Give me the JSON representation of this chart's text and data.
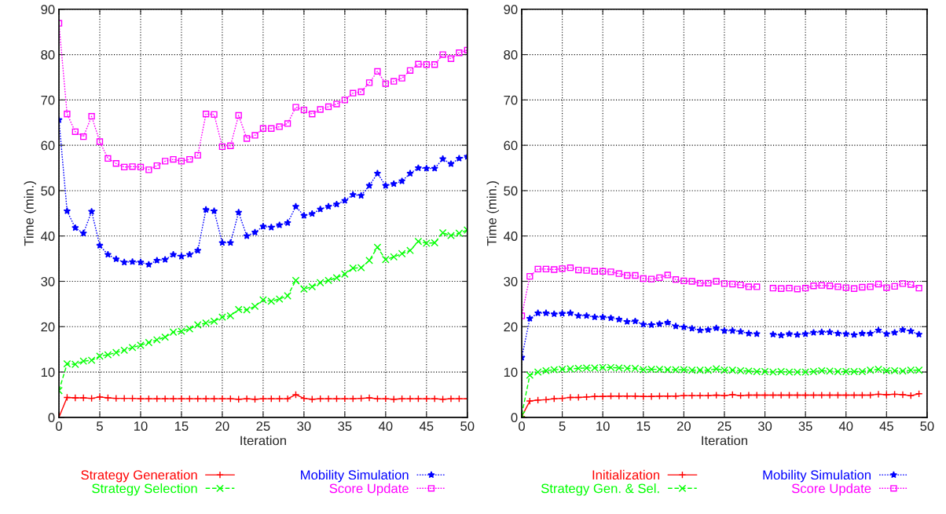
{
  "chart_data": [
    {
      "type": "line",
      "xlabel": "Iteration",
      "ylabel": "Time (min.)",
      "x": [
        0,
        1,
        2,
        3,
        4,
        5,
        6,
        7,
        8,
        9,
        10,
        11,
        12,
        13,
        14,
        15,
        16,
        17,
        18,
        19,
        20,
        21,
        22,
        23,
        24,
        25,
        26,
        27,
        28,
        29,
        30,
        31,
        32,
        33,
        34,
        35,
        36,
        37,
        38,
        39,
        40,
        41,
        42,
        43,
        44,
        45,
        46,
        47,
        48,
        49,
        50
      ],
      "xlim": [
        0,
        50
      ],
      "xticks": [
        0,
        5,
        10,
        15,
        20,
        25,
        30,
        35,
        40,
        45,
        50
      ],
      "ylim": [
        0,
        90
      ],
      "yticks": [
        0,
        10,
        20,
        30,
        40,
        50,
        60,
        70,
        80,
        90
      ],
      "grid": true,
      "legend": "bottom",
      "series": [
        {
          "name": "Strategy Generation",
          "color": "#ff0000",
          "marker": "plus",
          "line_style": "solid",
          "values": [
            0,
            4.4,
            4.3,
            4.3,
            4.2,
            4.5,
            4.3,
            4.2,
            4.2,
            4.2,
            4.1,
            4.1,
            4.1,
            4.1,
            4.1,
            4.1,
            4.1,
            4.1,
            4.1,
            4.1,
            4.1,
            4.1,
            4.0,
            4.1,
            4.0,
            4.1,
            4.1,
            4.1,
            4.1,
            5.0,
            4.2,
            4.0,
            4.1,
            4.1,
            4.1,
            4.1,
            4.1,
            4.2,
            4.3,
            4.1,
            4.1,
            4.0,
            4.1,
            4.1,
            4.1,
            4.1,
            4.1,
            4.0,
            4.1,
            4.1,
            4.1
          ]
        },
        {
          "name": "Strategy Selection",
          "color": "#00ff00",
          "marker": "cross",
          "line_style": "dashed",
          "values": [
            5.9,
            11.8,
            11.7,
            12.4,
            12.6,
            13.5,
            13.8,
            14.3,
            14.8,
            15.4,
            15.9,
            16.5,
            17.1,
            17.7,
            18.8,
            19.0,
            19.5,
            20.4,
            20.8,
            21.2,
            22.1,
            22.4,
            23.8,
            23.7,
            24.5,
            25.9,
            25.6,
            26.1,
            26.8,
            30.2,
            28.3,
            28.8,
            29.7,
            30.2,
            30.8,
            31.6,
            32.9,
            33.0,
            34.6,
            37.5,
            34.8,
            35.4,
            36.1,
            36.8,
            38.8,
            38.4,
            38.5,
            40.7,
            40.1,
            40.6,
            41.3
          ]
        },
        {
          "name": "Mobility Simulation",
          "color": "#0000ff",
          "marker": "star",
          "line_style": "dotted",
          "values": [
            65.6,
            45.5,
            41.8,
            40.6,
            45.4,
            37.9,
            35.9,
            34.9,
            34.2,
            34.3,
            34.2,
            33.7,
            34.6,
            34.8,
            35.9,
            35.5,
            35.9,
            36.8,
            45.8,
            45.5,
            38.5,
            38.5,
            45.2,
            40.0,
            40.8,
            42.1,
            41.9,
            42.4,
            42.9,
            46.5,
            44.5,
            44.9,
            45.9,
            46.5,
            47.0,
            47.8,
            49.1,
            48.9,
            51.1,
            53.8,
            51.1,
            51.5,
            52.1,
            53.8,
            55.0,
            54.9,
            54.9,
            57.0,
            55.9,
            57.1,
            57.5
          ]
        },
        {
          "name": "Score Update",
          "color": "#ff00ff",
          "marker": "square",
          "line_style": "dotted",
          "values": [
            86.9,
            66.9,
            63.0,
            61.9,
            66.4,
            60.8,
            57.1,
            56.0,
            55.2,
            55.3,
            55.2,
            54.6,
            55.5,
            56.5,
            56.9,
            56.5,
            56.9,
            57.8,
            66.9,
            66.8,
            59.7,
            59.9,
            66.6,
            61.5,
            62.2,
            63.7,
            63.7,
            64.1,
            64.8,
            68.4,
            67.8,
            66.9,
            67.9,
            68.5,
            69.1,
            70.0,
            71.5,
            71.8,
            73.8,
            76.3,
            73.6,
            74.1,
            74.8,
            76.5,
            77.9,
            77.8,
            77.8,
            80.0,
            79.1,
            80.4,
            81.0
          ]
        }
      ]
    },
    {
      "type": "line",
      "xlabel": "Iteration",
      "ylabel": "Time (min.)",
      "x": [
        0,
        1,
        2,
        3,
        4,
        5,
        6,
        7,
        8,
        9,
        10,
        11,
        12,
        13,
        14,
        15,
        16,
        17,
        18,
        19,
        20,
        21,
        22,
        23,
        24,
        25,
        26,
        27,
        28,
        29,
        30,
        31,
        32,
        33,
        34,
        35,
        36,
        37,
        38,
        39,
        40,
        41,
        42,
        43,
        44,
        45,
        46,
        47,
        48,
        49
      ],
      "xlim": [
        0,
        50
      ],
      "xticks": [
        0,
        5,
        10,
        15,
        20,
        25,
        30,
        35,
        40,
        45,
        50
      ],
      "ylim": [
        0,
        90
      ],
      "yticks": [
        0,
        10,
        20,
        30,
        40,
        50,
        60,
        70,
        80,
        90
      ],
      "grid": true,
      "legend": "bottom",
      "series": [
        {
          "name": "Initialization",
          "color": "#ff0000",
          "marker": "plus",
          "line_style": "solid",
          "values": [
            0.2,
            3.6,
            3.8,
            3.9,
            4.1,
            4.2,
            4.4,
            4.4,
            4.5,
            4.6,
            4.6,
            4.7,
            4.7,
            4.7,
            4.7,
            4.6,
            4.6,
            4.7,
            4.7,
            4.7,
            4.8,
            4.8,
            4.8,
            4.8,
            4.9,
            4.8,
            5.0,
            4.8,
            4.9,
            4.9,
            4.9,
            4.9,
            4.9,
            4.9,
            4.9,
            4.9,
            4.9,
            4.9,
            4.9,
            4.9,
            4.9,
            4.9,
            4.9,
            4.9,
            5.1,
            5.0,
            5.1,
            5.0,
            4.8,
            5.2
          ]
        },
        {
          "name": "Strategy Gen. & Sel.",
          "color": "#00ff00",
          "marker": "cross",
          "line_style": "dashed",
          "values": [
            0.6,
            9.3,
            10.0,
            10.3,
            10.5,
            10.6,
            10.7,
            10.8,
            10.9,
            10.9,
            11.0,
            11.0,
            10.9,
            10.8,
            10.8,
            10.5,
            10.6,
            10.6,
            10.5,
            10.5,
            10.5,
            10.4,
            10.4,
            10.4,
            10.7,
            10.4,
            10.4,
            10.3,
            10.2,
            10.1,
            10.1,
            10.0,
            10.1,
            10.0,
            10.0,
            10.0,
            10.1,
            10.3,
            10.2,
            10.1,
            10.1,
            10.1,
            10.1,
            10.4,
            10.6,
            10.3,
            10.3,
            10.2,
            10.4,
            10.4
          ]
        },
        {
          "name": "Mobility Simulation",
          "color": "#0000ff",
          "marker": "star",
          "line_style": "dotted",
          "values": [
            13.2,
            21.8,
            23.0,
            23.0,
            22.8,
            22.9,
            23.0,
            22.4,
            22.4,
            22.1,
            22.1,
            21.9,
            21.6,
            21.1,
            21.2,
            20.5,
            20.4,
            20.6,
            20.9,
            20.1,
            19.9,
            19.6,
            19.2,
            19.3,
            19.7,
            19.1,
            19.1,
            18.9,
            18.5,
            18.4,
            null,
            18.3,
            18.1,
            18.4,
            18.2,
            18.4,
            18.7,
            18.8,
            18.8,
            18.5,
            18.4,
            18.2,
            18.5,
            18.5,
            19.2,
            18.4,
            18.7,
            19.3,
            19.0,
            18.3
          ]
        },
        {
          "name": "Score Update",
          "color": "#ff00ff",
          "marker": "square",
          "line_style": "dotted",
          "values": [
            22.4,
            31.1,
            32.7,
            32.7,
            32.6,
            32.8,
            33.0,
            32.5,
            32.4,
            32.2,
            32.2,
            32.1,
            31.7,
            31.3,
            31.3,
            30.6,
            30.5,
            30.8,
            31.4,
            30.4,
            30.1,
            30.0,
            29.6,
            29.6,
            30.0,
            29.5,
            29.4,
            29.2,
            28.8,
            28.8,
            null,
            28.5,
            28.4,
            28.5,
            28.3,
            28.5,
            29.0,
            29.1,
            29.0,
            28.8,
            28.6,
            28.4,
            28.7,
            28.8,
            29.4,
            28.6,
            28.9,
            29.5,
            29.3,
            28.5
          ]
        }
      ]
    }
  ]
}
